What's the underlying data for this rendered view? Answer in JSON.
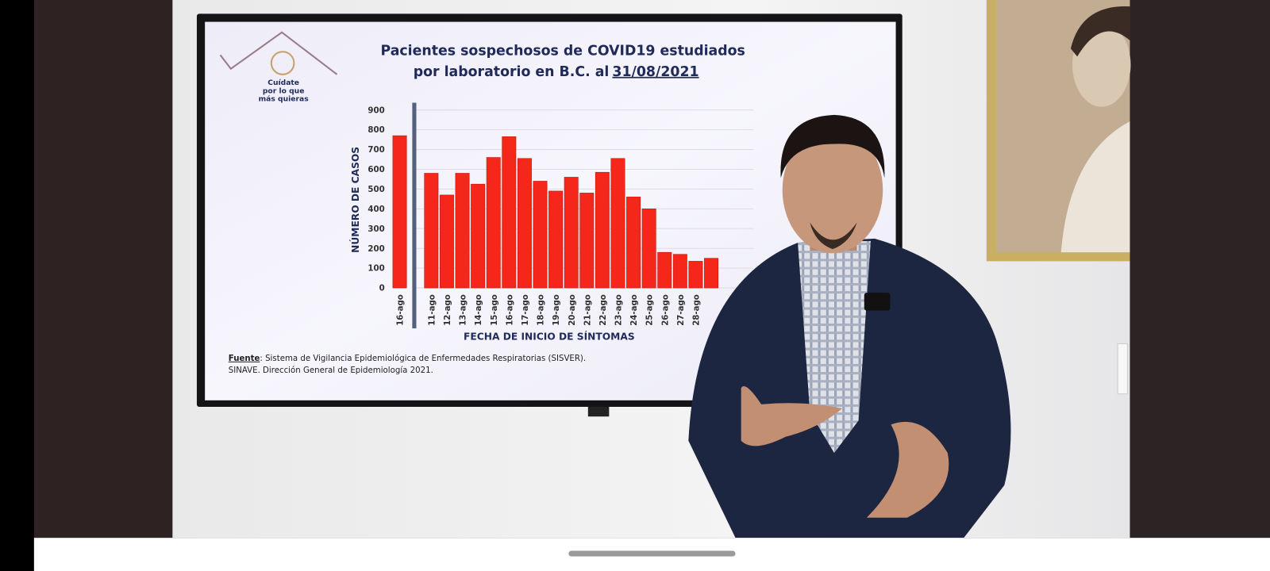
{
  "slide": {
    "title_lines": [
      "Pacientes sospechosos de COVID19 estudiados",
      "por laboratorio en B.C. al"
    ],
    "title_date": "31/08/2021",
    "logo": [
      "Cuídate",
      "por lo que",
      "más quieras"
    ],
    "source": {
      "label": "Fuente",
      "line1": ": Sistema de Vigilancia Epidemiológica de Enfermedades Respiratorias (SISVER).",
      "line2": "SINAVE. Dirección General de Epidemiología 2021."
    }
  },
  "chart_data": {
    "type": "bar",
    "categories": [
      "16-ago",
      "11-ago",
      "12-ago",
      "13-ago",
      "14-ago",
      "15-ago",
      "16-ago",
      "17-ago",
      "18-ago",
      "19-ago",
      "20-ago",
      "21-ago",
      "22-ago",
      "23-ago",
      "24-ago",
      "25-ago",
      "26-ago",
      "27-ago",
      "28-ago",
      null
    ],
    "values": [
      770,
      580,
      470,
      580,
      525,
      660,
      765,
      655,
      540,
      490,
      560,
      480,
      585,
      655,
      460,
      400,
      180,
      170,
      135,
      150
    ],
    "color": "#f5261a",
    "ylabel": "NÚMERO DE CASOS",
    "xlabel": "FECHA DE INICIO DE SÍNTOMAS",
    "ylim": [
      0,
      900
    ],
    "yticks": [
      0,
      100,
      200,
      300,
      400,
      500,
      600,
      700,
      800,
      900
    ],
    "grid": true
  }
}
